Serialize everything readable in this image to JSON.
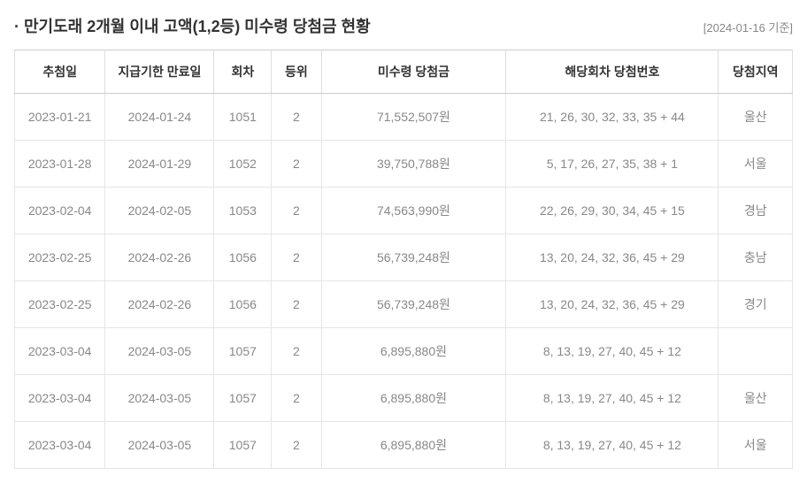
{
  "header": {
    "title": "만기도래 2개월 이내 고액(1,2등) 미수령 당첨금 현황",
    "asOf": "[2024-01-16 기준]"
  },
  "table": {
    "columns": [
      "추첨일",
      "지급기한 만료일",
      "회차",
      "등위",
      "미수령 당첨금",
      "해당회차 당첨번호",
      "당첨지역"
    ],
    "rows": [
      {
        "drawDate": "2023-01-21",
        "expiry": "2024-01-24",
        "round": "1051",
        "rank": "2",
        "amount": "71,552,507원",
        "numbers": "21, 26, 30, 32, 33, 35 + 44",
        "region": "울산"
      },
      {
        "drawDate": "2023-01-28",
        "expiry": "2024-01-29",
        "round": "1052",
        "rank": "2",
        "amount": "39,750,788원",
        "numbers": "5, 17, 26, 27, 35, 38 + 1",
        "region": "서울"
      },
      {
        "drawDate": "2023-02-04",
        "expiry": "2024-02-05",
        "round": "1053",
        "rank": "2",
        "amount": "74,563,990원",
        "numbers": "22, 26, 29, 30, 34, 45 + 15",
        "region": "경남"
      },
      {
        "drawDate": "2023-02-25",
        "expiry": "2024-02-26",
        "round": "1056",
        "rank": "2",
        "amount": "56,739,248원",
        "numbers": "13, 20, 24, 32, 36, 45 + 29",
        "region": "충남"
      },
      {
        "drawDate": "2023-02-25",
        "expiry": "2024-02-26",
        "round": "1056",
        "rank": "2",
        "amount": "56,739,248원",
        "numbers": "13, 20, 24, 32, 36, 45 + 29",
        "region": "경기"
      },
      {
        "drawDate": "2023-03-04",
        "expiry": "2024-03-05",
        "round": "1057",
        "rank": "2",
        "amount": "6,895,880원",
        "numbers": "8, 13, 19, 27, 40, 45 + 12",
        "region": ""
      },
      {
        "drawDate": "2023-03-04",
        "expiry": "2024-03-05",
        "round": "1057",
        "rank": "2",
        "amount": "6,895,880원",
        "numbers": "8, 13, 19, 27, 40, 45 + 12",
        "region": "울산"
      },
      {
        "drawDate": "2023-03-04",
        "expiry": "2024-03-05",
        "round": "1057",
        "rank": "2",
        "amount": "6,895,880원",
        "numbers": "8, 13, 19, 27, 40, 45 + 12",
        "region": "서울"
      }
    ]
  },
  "style": {
    "colWidths": [
      "98px",
      "118px",
      "62px",
      "54px",
      "200px",
      "230px",
      "80px"
    ],
    "headerBg": "#ffffff",
    "headerText": "#333333",
    "cellText": "#888888",
    "borderColor": "#dddddd",
    "rowBorder": "#e5e5e5",
    "titleColor": "#333333",
    "asOfColor": "#888888",
    "titleFontSize": 18,
    "cellFontSize": 14
  }
}
